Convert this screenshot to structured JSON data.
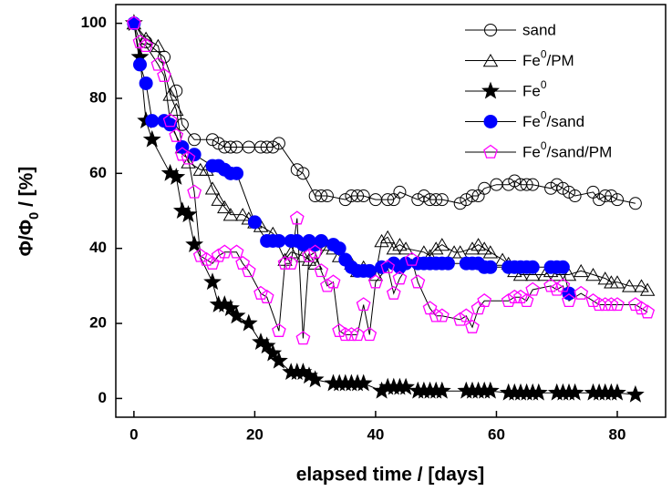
{
  "chart_data": {
    "type": "line",
    "xlabel": "elapsed time / [days]",
    "ylabel": "Φ/Φ0 / [%]",
    "xlim": [
      -3,
      88
    ],
    "ylim": [
      -5,
      105
    ],
    "xticks": [
      0,
      20,
      40,
      60,
      80
    ],
    "yticks": [
      0,
      20,
      40,
      60,
      80,
      100
    ],
    "legend": "upper right",
    "series": [
      {
        "name": "sand",
        "color": "#000000",
        "marker": "circle-open",
        "x": [
          0,
          2,
          5,
          7,
          8,
          10,
          13,
          14,
          15,
          16,
          17,
          19,
          21,
          22,
          23,
          24,
          27,
          28,
          30,
          31,
          32,
          35,
          36,
          37,
          38,
          40,
          42,
          43,
          44,
          47,
          48,
          49,
          50,
          51,
          54,
          55,
          56,
          57,
          58,
          60,
          62,
          63,
          64,
          65,
          66,
          69,
          70,
          71,
          72,
          73,
          76,
          77,
          78,
          79,
          80,
          83
        ],
        "values": [
          100,
          95,
          91,
          82,
          73,
          69,
          69,
          68,
          67,
          67,
          67,
          67,
          67,
          67,
          67,
          68,
          61,
          60,
          54,
          54,
          54,
          53,
          54,
          54,
          54,
          53,
          53,
          53,
          55,
          53,
          54,
          53,
          53,
          53,
          52,
          53,
          54,
          54,
          56,
          57,
          57,
          58,
          57,
          57,
          57,
          56,
          57,
          56,
          55,
          54,
          55,
          53,
          54,
          54,
          53,
          52
        ]
      },
      {
        "name": "Fe0/PM",
        "color": "#000000",
        "marker": "triangle-open",
        "x": [
          0,
          2,
          4,
          6,
          7,
          8,
          9,
          11,
          12,
          13,
          14,
          15,
          16,
          18,
          19,
          20,
          21,
          23,
          25,
          26,
          28,
          29,
          30,
          32,
          33,
          34,
          36,
          37,
          38,
          40,
          41,
          42,
          43,
          44,
          45,
          48,
          49,
          50,
          51,
          53,
          54,
          56,
          57,
          58,
          59,
          61,
          62,
          63,
          64,
          66,
          68,
          69,
          70,
          72,
          74,
          76,
          78,
          79,
          80,
          82,
          84,
          85
        ],
        "values": [
          100,
          96,
          94,
          81,
          77,
          67,
          63,
          61,
          61,
          56,
          53,
          51,
          49,
          49,
          48,
          47,
          46,
          44,
          37,
          39,
          38,
          37,
          36,
          41,
          40,
          38,
          36,
          34,
          35,
          33,
          42,
          43,
          40,
          41,
          40,
          39,
          38,
          40,
          41,
          39,
          39,
          40,
          41,
          40,
          39,
          37,
          36,
          34,
          33,
          33,
          33,
          34,
          33,
          33,
          34,
          33,
          32,
          31,
          31,
          30,
          30,
          29
        ]
      },
      {
        "name": "Fe0",
        "color": "#000000",
        "marker": "star",
        "x": [
          0,
          1,
          2,
          3,
          6,
          7,
          8,
          9,
          10,
          13,
          14,
          15,
          16,
          17,
          19,
          21,
          22,
          23,
          24,
          26,
          27,
          28,
          29,
          30,
          33,
          34,
          35,
          36,
          37,
          38,
          41,
          42,
          43,
          44,
          45,
          47,
          48,
          49,
          50,
          51,
          55,
          56,
          57,
          58,
          59,
          62,
          63,
          64,
          65,
          66,
          67,
          70,
          71,
          72,
          73,
          76,
          77,
          78,
          79,
          80,
          83
        ],
        "values": [
          100,
          91,
          74,
          69,
          60,
          59,
          50,
          49,
          41,
          31,
          25,
          25,
          24,
          22,
          20,
          15,
          14,
          12,
          10,
          7,
          7,
          7,
          6,
          5,
          4,
          4,
          4,
          4,
          4,
          4,
          2,
          3,
          3,
          3,
          3,
          2,
          2,
          2,
          2,
          2,
          2,
          2,
          2,
          2,
          2,
          1.5,
          1.5,
          1.5,
          1.5,
          1.5,
          1.5,
          1.5,
          1.5,
          1.5,
          1.5,
          1.5,
          1.5,
          1.5,
          1.5,
          1.5,
          1
        ]
      },
      {
        "name": "Fe0/sand",
        "color": "#0000ff",
        "marker": "circle-filled",
        "x": [
          0,
          1,
          2,
          3,
          5,
          6,
          8,
          10,
          13,
          14,
          15,
          16,
          17,
          20,
          22,
          23,
          24,
          26,
          27,
          28,
          29,
          30,
          31,
          33,
          34,
          35,
          36,
          37,
          38,
          39,
          41,
          43,
          44,
          45,
          47,
          48,
          49,
          50,
          51,
          52,
          55,
          56,
          57,
          58,
          59,
          62,
          63,
          64,
          65,
          66,
          69,
          70,
          71,
          72
        ],
        "values": [
          100,
          89,
          84,
          74,
          74,
          73,
          67,
          65,
          62,
          62,
          61,
          60,
          60,
          47,
          42,
          42,
          42,
          42,
          42,
          41,
          42,
          41,
          42,
          41,
          40,
          37,
          35,
          34,
          34,
          34,
          35,
          36,
          35,
          36,
          36,
          36,
          36,
          36,
          36,
          36,
          36,
          36,
          36,
          35,
          35,
          35,
          35,
          35,
          35,
          35,
          35,
          35,
          35,
          28
        ]
      },
      {
        "name": "Fe0/sand/PM",
        "color": "#ff00ff",
        "marker": "pentagon-open",
        "x": [
          0,
          1,
          2,
          4,
          5,
          6,
          7,
          8,
          9,
          10,
          11,
          12,
          13,
          14,
          15,
          17,
          18,
          19,
          21,
          22,
          24,
          25,
          26,
          27,
          28,
          29,
          30,
          31,
          32,
          33,
          34,
          35,
          36,
          37,
          38,
          39,
          40,
          42,
          43,
          44,
          46,
          47,
          49,
          50,
          51,
          54,
          55,
          56,
          57,
          58,
          62,
          63,
          64,
          65,
          66,
          69,
          70,
          71,
          72,
          74,
          76,
          77,
          78,
          79,
          80,
          83,
          84,
          85
        ],
        "values": [
          100,
          95,
          94,
          89,
          86,
          74,
          70,
          65,
          64,
          55,
          38,
          37,
          36,
          38,
          39,
          39,
          36,
          34,
          28,
          27,
          18,
          36,
          36,
          48,
          16,
          38,
          39,
          34,
          30,
          31,
          18,
          17,
          17,
          17,
          25,
          17,
          31,
          35,
          28,
          32,
          37,
          31,
          24,
          22,
          22,
          21,
          22,
          19,
          24,
          26,
          26,
          27,
          27,
          26,
          29,
          30,
          29,
          30,
          26,
          28,
          26,
          25,
          25,
          25,
          25,
          25,
          24,
          23
        ]
      }
    ]
  }
}
